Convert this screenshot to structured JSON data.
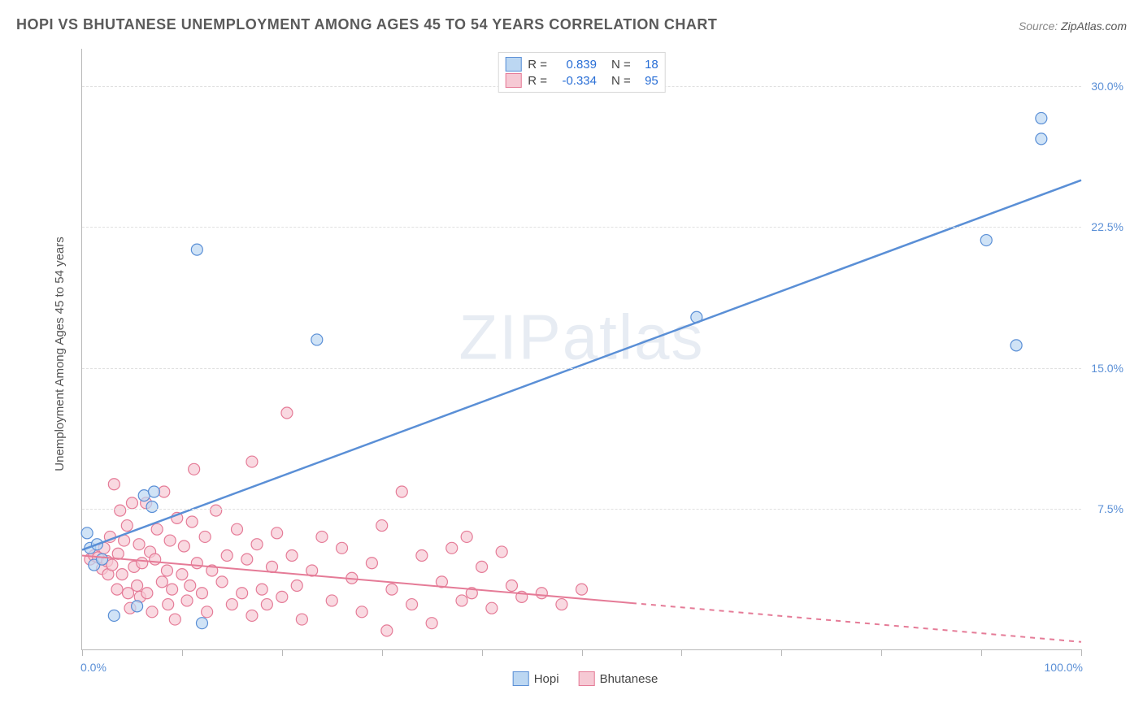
{
  "title": "HOPI VS BHUTANESE UNEMPLOYMENT AMONG AGES 45 TO 54 YEARS CORRELATION CHART",
  "source_label": "Source:",
  "source_value": "ZipAtlas.com",
  "watermark": "ZIPatlas",
  "ylabel": "Unemployment Among Ages 45 to 54 years",
  "chart": {
    "type": "scatter",
    "xlim": [
      0,
      100
    ],
    "ylim": [
      0,
      32
    ],
    "x_tick_positions": [
      0,
      10,
      20,
      30,
      40,
      50,
      60,
      70,
      80,
      90,
      100
    ],
    "y_grid": [
      7.5,
      15.0,
      22.5,
      30.0
    ],
    "x_tick_labels": {
      "left": "0.0%",
      "right": "100.0%"
    },
    "y_tick_labels": [
      "7.5%",
      "15.0%",
      "22.5%",
      "30.0%"
    ],
    "background_color": "#ffffff",
    "grid_color": "#e0e0e0",
    "axis_color": "#b8b8b8",
    "tick_label_color": "#5a8fd6",
    "marker_radius": 7,
    "marker_stroke_width": 1.2,
    "line_width_blue": 2.5,
    "line_width_pink": 2.0,
    "series": [
      {
        "name": "Hopi",
        "fill": "#bcd7f2",
        "stroke": "#5a8fd6",
        "r": 0.839,
        "n": 18,
        "trend": {
          "x1": 0,
          "y1": 5.3,
          "x2": 100,
          "y2": 25.0,
          "solid_until": 100
        },
        "points": [
          [
            0.5,
            6.2
          ],
          [
            0.8,
            5.4
          ],
          [
            1.2,
            4.5
          ],
          [
            1.5,
            5.6
          ],
          [
            2.0,
            4.8
          ],
          [
            3.2,
            1.8
          ],
          [
            5.5,
            2.3
          ],
          [
            6.2,
            8.2
          ],
          [
            7.0,
            7.6
          ],
          [
            7.2,
            8.4
          ],
          [
            11.5,
            21.3
          ],
          [
            12.0,
            1.4
          ],
          [
            23.5,
            16.5
          ],
          [
            61.5,
            17.7
          ],
          [
            90.5,
            21.8
          ],
          [
            93.5,
            16.2
          ],
          [
            96.0,
            28.3
          ],
          [
            96.0,
            27.2
          ]
        ]
      },
      {
        "name": "Bhutanese",
        "fill": "#f6c9d4",
        "stroke": "#e57b97",
        "r": -0.334,
        "n": 95,
        "trend": {
          "x1": 0,
          "y1": 5.0,
          "x2": 100,
          "y2": 0.4,
          "solid_until": 55
        },
        "points": [
          [
            0.8,
            4.8
          ],
          [
            1.2,
            5.0
          ],
          [
            1.6,
            4.9
          ],
          [
            2.0,
            4.3
          ],
          [
            2.2,
            5.4
          ],
          [
            2.5,
            4.7
          ],
          [
            2.6,
            4.0
          ],
          [
            2.8,
            6.0
          ],
          [
            3.0,
            4.5
          ],
          [
            3.2,
            8.8
          ],
          [
            3.5,
            3.2
          ],
          [
            3.6,
            5.1
          ],
          [
            3.8,
            7.4
          ],
          [
            4.0,
            4.0
          ],
          [
            4.2,
            5.8
          ],
          [
            4.5,
            6.6
          ],
          [
            4.6,
            3.0
          ],
          [
            4.8,
            2.2
          ],
          [
            5.0,
            7.8
          ],
          [
            5.2,
            4.4
          ],
          [
            5.5,
            3.4
          ],
          [
            5.7,
            5.6
          ],
          [
            5.8,
            2.8
          ],
          [
            6.0,
            4.6
          ],
          [
            6.4,
            7.8
          ],
          [
            6.5,
            3.0
          ],
          [
            6.8,
            5.2
          ],
          [
            7.0,
            2.0
          ],
          [
            7.3,
            4.8
          ],
          [
            7.5,
            6.4
          ],
          [
            8.0,
            3.6
          ],
          [
            8.2,
            8.4
          ],
          [
            8.5,
            4.2
          ],
          [
            8.6,
            2.4
          ],
          [
            8.8,
            5.8
          ],
          [
            9.0,
            3.2
          ],
          [
            9.3,
            1.6
          ],
          [
            9.5,
            7.0
          ],
          [
            10.0,
            4.0
          ],
          [
            10.2,
            5.5
          ],
          [
            10.5,
            2.6
          ],
          [
            10.8,
            3.4
          ],
          [
            11.0,
            6.8
          ],
          [
            11.2,
            9.6
          ],
          [
            11.5,
            4.6
          ],
          [
            12.0,
            3.0
          ],
          [
            12.3,
            6.0
          ],
          [
            12.5,
            2.0
          ],
          [
            13.0,
            4.2
          ],
          [
            13.4,
            7.4
          ],
          [
            14.0,
            3.6
          ],
          [
            14.5,
            5.0
          ],
          [
            15.0,
            2.4
          ],
          [
            15.5,
            6.4
          ],
          [
            16.0,
            3.0
          ],
          [
            16.5,
            4.8
          ],
          [
            17.0,
            1.8
          ],
          [
            17.0,
            10.0
          ],
          [
            17.5,
            5.6
          ],
          [
            18.0,
            3.2
          ],
          [
            18.5,
            2.4
          ],
          [
            19.0,
            4.4
          ],
          [
            19.5,
            6.2
          ],
          [
            20.0,
            2.8
          ],
          [
            20.5,
            12.6
          ],
          [
            21.0,
            5.0
          ],
          [
            21.5,
            3.4
          ],
          [
            22.0,
            1.6
          ],
          [
            23.0,
            4.2
          ],
          [
            24.0,
            6.0
          ],
          [
            25.0,
            2.6
          ],
          [
            26.0,
            5.4
          ],
          [
            27.0,
            3.8
          ],
          [
            28.0,
            2.0
          ],
          [
            29.0,
            4.6
          ],
          [
            30.0,
            6.6
          ],
          [
            30.5,
            1.0
          ],
          [
            31.0,
            3.2
          ],
          [
            32.0,
            8.4
          ],
          [
            33.0,
            2.4
          ],
          [
            34.0,
            5.0
          ],
          [
            35.0,
            1.4
          ],
          [
            36.0,
            3.6
          ],
          [
            37.0,
            5.4
          ],
          [
            38.0,
            2.6
          ],
          [
            38.5,
            6.0
          ],
          [
            39.0,
            3.0
          ],
          [
            40.0,
            4.4
          ],
          [
            41.0,
            2.2
          ],
          [
            42.0,
            5.2
          ],
          [
            43.0,
            3.4
          ],
          [
            44.0,
            2.8
          ],
          [
            46.0,
            3.0
          ],
          [
            48.0,
            2.4
          ],
          [
            50.0,
            3.2
          ]
        ]
      }
    ]
  },
  "stats_labels": {
    "R": "R =",
    "N": "N ="
  },
  "legend": {
    "items": [
      "Hopi",
      "Bhutanese"
    ]
  }
}
